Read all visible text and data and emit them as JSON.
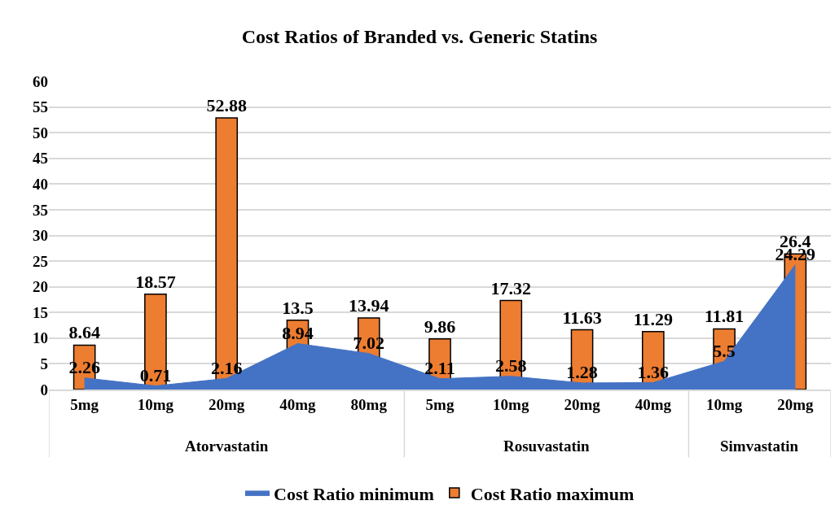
{
  "chart_data": {
    "type": "bar",
    "title": "Cost Ratios of Branded vs. Generic Statins",
    "categories": [
      "5mg",
      "10mg",
      "20mg",
      "40mg",
      "80mg",
      "5mg",
      "10mg",
      "20mg",
      "40mg",
      "10mg",
      "20mg"
    ],
    "series": [
      {
        "name": "Cost Ratio minimum",
        "type": "area",
        "color": "#4472c4",
        "values": [
          2.26,
          0.71,
          2.16,
          8.94,
          7.02,
          2.11,
          2.58,
          1.28,
          1.36,
          5.5,
          24.29
        ]
      },
      {
        "name": "Cost Ratio maximum",
        "color": "#ed7d31",
        "values": [
          8.64,
          18.57,
          52.88,
          13.5,
          13.94,
          9.86,
          17.32,
          11.63,
          11.29,
          11.81,
          26.4
        ]
      }
    ],
    "annotations": [
      "Atorvastatin",
      "Rosuvastatin",
      "Simvastatin"
    ],
    "ylim": [
      0,
      60
    ],
    "yticks": [
      0,
      5,
      10,
      15,
      20,
      25,
      30,
      35,
      40,
      45,
      50,
      55,
      60
    ],
    "grid": "y",
    "legend": "bottom",
    "data_labels": true
  }
}
